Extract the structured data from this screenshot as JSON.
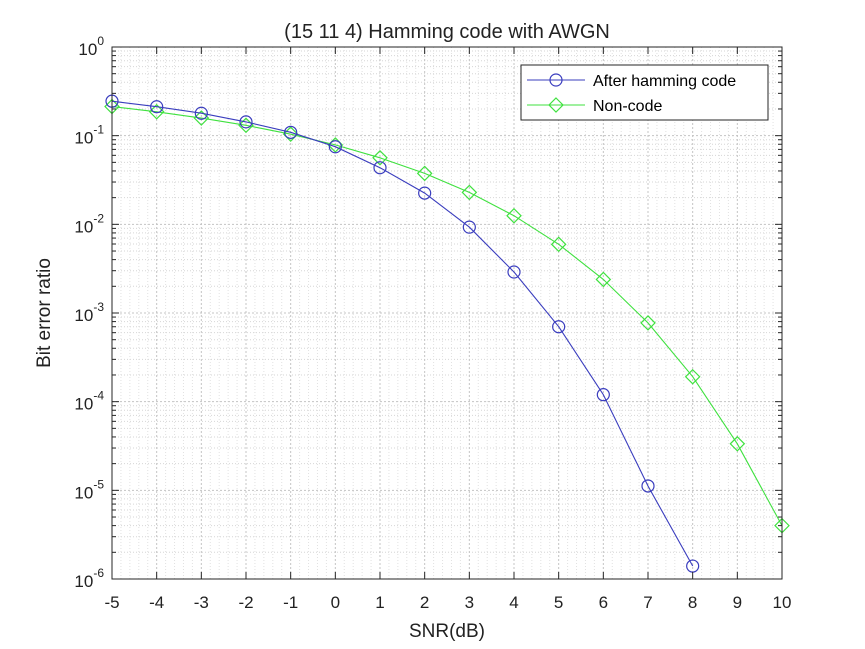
{
  "chart_data": {
    "type": "line",
    "title": "(15 11 4) Hamming code with AWGN",
    "xlabel": "SNR(dB)",
    "ylabel": "Bit error ratio",
    "xlim": [
      -5,
      10
    ],
    "ylim": [
      1e-06,
      1
    ],
    "yscale": "log",
    "grid": true,
    "minor_grid": true,
    "legend_position": "top-right",
    "x_ticks": [
      "-5",
      "-4",
      "-3",
      "-2",
      "-1",
      "0",
      "1",
      "2",
      "3",
      "4",
      "5",
      "6",
      "7",
      "8",
      "9",
      "10"
    ],
    "y_ticks": [
      {
        "base": "10",
        "exp": "-6"
      },
      {
        "base": "10",
        "exp": "-5"
      },
      {
        "base": "10",
        "exp": "-4"
      },
      {
        "base": "10",
        "exp": "-3"
      },
      {
        "base": "10",
        "exp": "-2"
      },
      {
        "base": "10",
        "exp": "-1"
      },
      {
        "base": "10",
        "exp": "0"
      }
    ],
    "series": [
      {
        "name": "After hamming code",
        "color": "#3a3dbe",
        "marker": "circle",
        "x": [
          -5,
          -4,
          -3,
          -2,
          -1,
          0,
          1,
          2,
          3,
          4,
          5,
          6,
          7,
          8
        ],
        "y": [
          0.245,
          0.212,
          0.179,
          0.143,
          0.109,
          0.075,
          0.0435,
          0.0225,
          0.0093,
          0.0029,
          0.0007,
          0.00012,
          1.12e-05,
          1.4e-06
        ]
      },
      {
        "name": "Non-code",
        "color": "#3fe13f",
        "marker": "diamond",
        "x": [
          -5,
          -4,
          -3,
          -2,
          -1,
          0,
          1,
          2,
          3,
          4,
          5,
          6,
          7,
          8,
          9,
          10
        ],
        "y": [
          0.213,
          0.186,
          0.158,
          0.131,
          0.104,
          0.0786,
          0.0563,
          0.0375,
          0.0229,
          0.0125,
          0.00595,
          0.00239,
          0.000773,
          0.000191,
          3.35e-05,
          4e-06
        ]
      }
    ]
  }
}
